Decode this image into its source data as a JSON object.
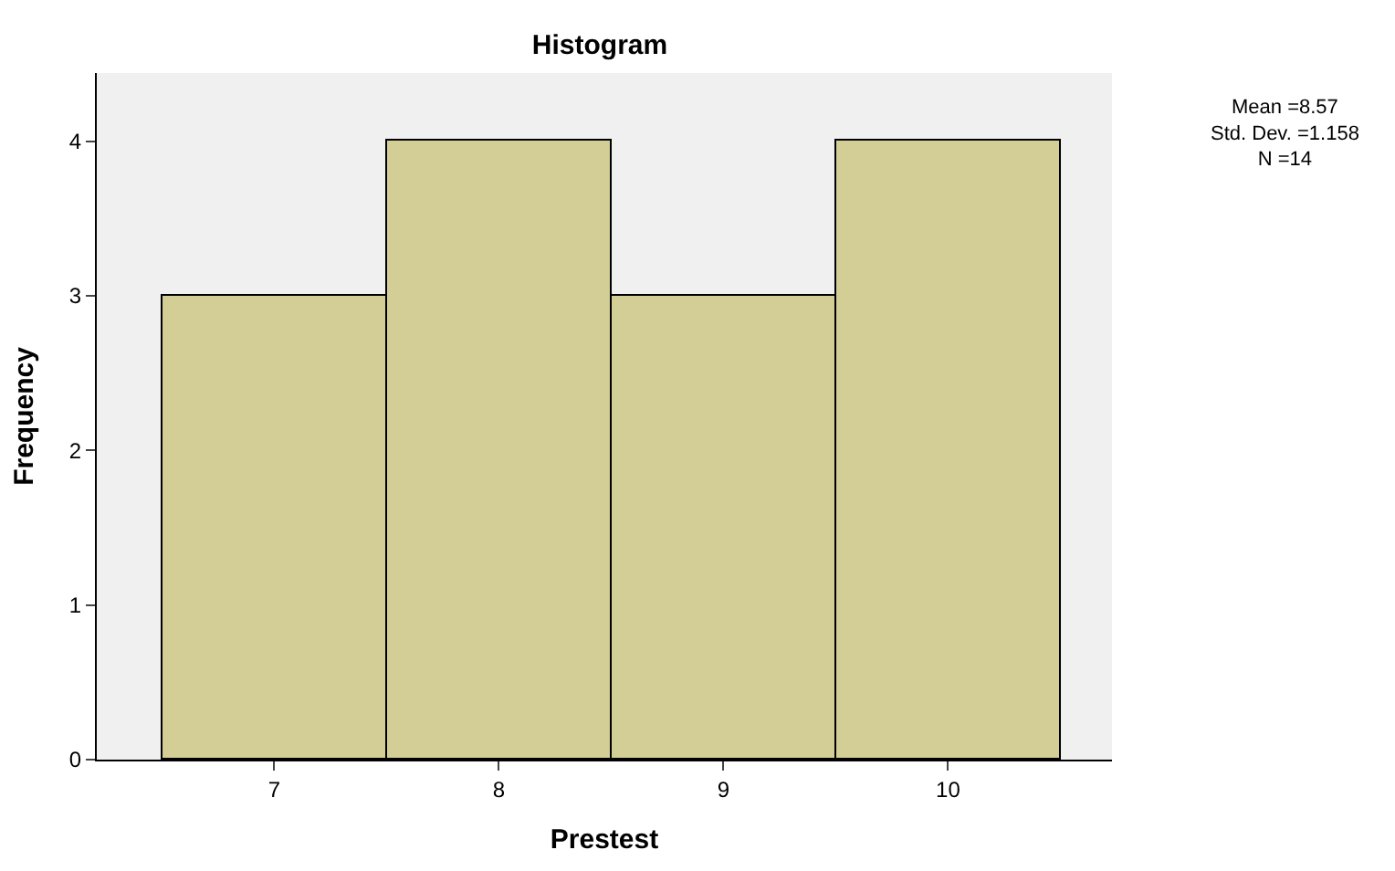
{
  "chart_data": {
    "type": "histogram",
    "title": "Histogram",
    "xlabel": "Prestest",
    "ylabel": "Frequency",
    "bins": [
      6.5,
      7.5,
      8.5,
      9.5,
      10.5
    ],
    "values": [
      3,
      4,
      3,
      4
    ],
    "color": "#d3cd96",
    "xlim": [
      6.21,
      10.73
    ],
    "xticks": [
      7,
      8,
      9,
      10
    ],
    "ylim": [
      0,
      4.44
    ],
    "yticks": [
      0,
      1,
      2,
      3,
      4
    ],
    "grid": false,
    "annotations": [
      "Mean =8.57\nStd. Dev. =1.158\nN =14"
    ]
  }
}
